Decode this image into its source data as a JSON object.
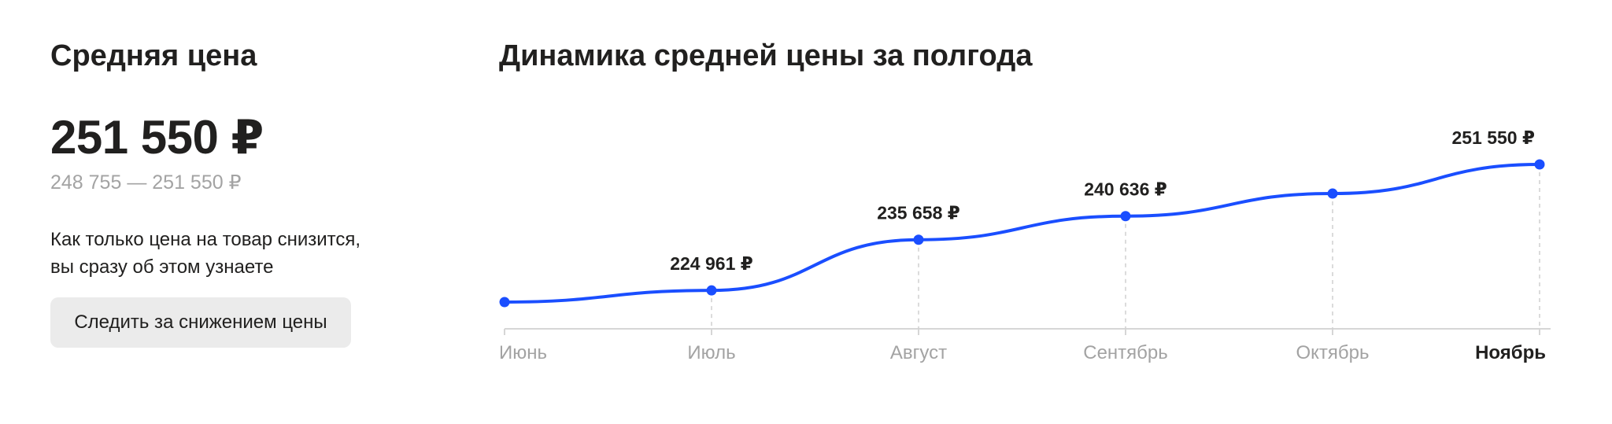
{
  "summary": {
    "title": "Средняя цена",
    "price": "251 550 ₽",
    "range": "248 755 — 251 550 ₽",
    "notify_line1": "Как только цена на товар снизится,",
    "notify_line2": "вы сразу об этом узнаете",
    "follow_button_label": "Следить за снижением цены"
  },
  "colors": {
    "line": "#1a4eff",
    "text": "#21201f",
    "muted": "#a3a3a3"
  },
  "chart_data": {
    "type": "line",
    "title": "Динамика средней цены за полгода",
    "xlabel": "",
    "ylabel": "",
    "categories": [
      "Июнь",
      "Июль",
      "Август",
      "Сентябрь",
      "Октябрь",
      "Ноябрь"
    ],
    "series": [
      {
        "values": [
          222500,
          224961,
          235658,
          240636,
          245400,
          251550
        ],
        "labels": [
          "",
          "224 961 ₽",
          "235 658 ₽",
          "240 636 ₽",
          "",
          "251 550 ₽"
        ]
      }
    ],
    "highlight_category": "Ноябрь",
    "grid": false,
    "legend": "none"
  }
}
